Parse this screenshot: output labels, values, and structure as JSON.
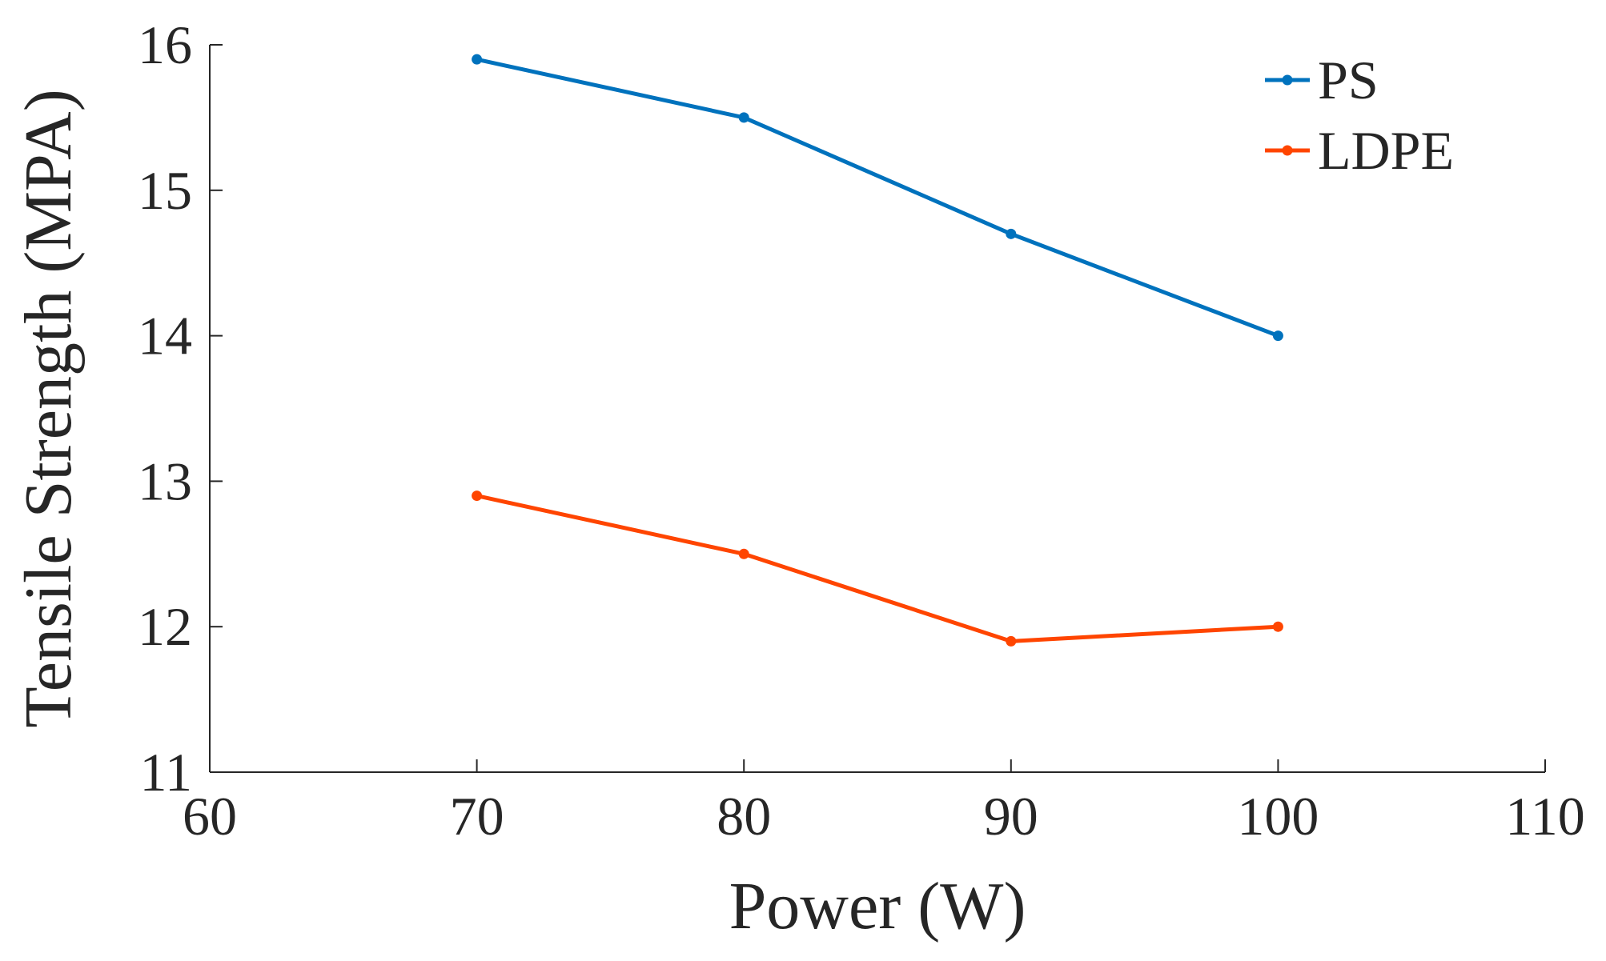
{
  "chart_data": {
    "type": "line",
    "title": "",
    "xlabel": "Power (W)",
    "ylabel": "Tensile Strength (MPA)",
    "xlim": [
      60,
      110
    ],
    "ylim": [
      11,
      16
    ],
    "xticks": [
      60,
      70,
      80,
      90,
      100,
      110
    ],
    "yticks": [
      11,
      12,
      13,
      14,
      15,
      16
    ],
    "grid": false,
    "legend_position": "top-right",
    "x": [
      70,
      80,
      90,
      100
    ],
    "series": [
      {
        "name": "PS",
        "color": "#0072BD",
        "values": [
          15.9,
          15.5,
          14.7,
          14.0
        ]
      },
      {
        "name": "LDPE",
        "color": "#FF4500",
        "values": [
          12.9,
          12.5,
          11.9,
          12.0
        ]
      }
    ]
  }
}
